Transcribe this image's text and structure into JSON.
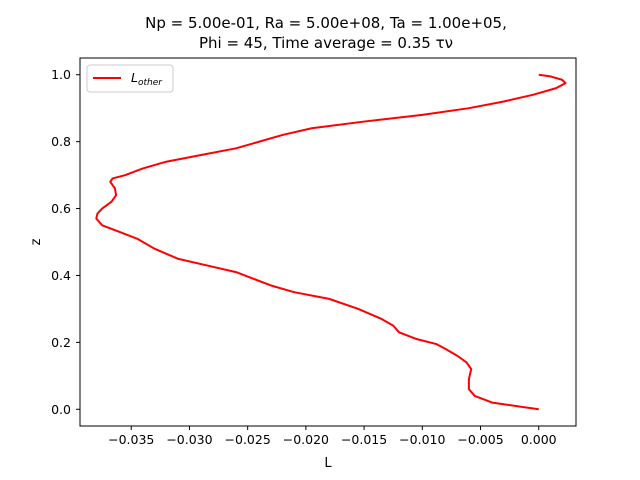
{
  "chart_data": {
    "type": "line",
    "title_line1": "Np = 5.00e-01, Ra = 5.00e+08, Ta = 1.00e+05,",
    "title_line2": "Phi = 45, Time average = 0.35 τν",
    "xlabel": "L",
    "ylabel": "z",
    "xlim": [
      -0.0394,
      0.0032
    ],
    "ylim": [
      -0.05,
      1.05
    ],
    "xticks": [
      -0.035,
      -0.03,
      -0.025,
      -0.02,
      -0.015,
      -0.01,
      -0.005,
      0.0
    ],
    "xtick_labels": [
      "−0.035",
      "−0.030",
      "−0.025",
      "−0.020",
      "−0.015",
      "−0.010",
      "−0.005",
      "0.000"
    ],
    "yticks": [
      0.0,
      0.2,
      0.4,
      0.6,
      0.8,
      1.0
    ],
    "ytick_labels": [
      "0.0",
      "0.2",
      "0.4",
      "0.6",
      "0.8",
      "1.0"
    ],
    "grid": false,
    "legend_position": "top-left",
    "series": [
      {
        "name": "L_other",
        "name_main": "L",
        "name_sub": "other",
        "color": "#ff0000",
        "points": [
          [
            0.0,
            0.0
          ],
          [
            -0.001,
            0.005
          ],
          [
            -0.004,
            0.02
          ],
          [
            -0.0055,
            0.04
          ],
          [
            -0.006,
            0.06
          ],
          [
            -0.006,
            0.09
          ],
          [
            -0.0058,
            0.12
          ],
          [
            -0.0062,
            0.14
          ],
          [
            -0.007,
            0.16
          ],
          [
            -0.008,
            0.18
          ],
          [
            -0.0088,
            0.195
          ],
          [
            -0.0105,
            0.21
          ],
          [
            -0.012,
            0.23
          ],
          [
            -0.0125,
            0.25
          ],
          [
            -0.0135,
            0.27
          ],
          [
            -0.0155,
            0.3
          ],
          [
            -0.018,
            0.33
          ],
          [
            -0.021,
            0.35
          ],
          [
            -0.023,
            0.37
          ],
          [
            -0.0245,
            0.39
          ],
          [
            -0.026,
            0.41
          ],
          [
            -0.0285,
            0.43
          ],
          [
            -0.031,
            0.45
          ],
          [
            -0.033,
            0.48
          ],
          [
            -0.0345,
            0.51
          ],
          [
            -0.036,
            0.53
          ],
          [
            -0.0375,
            0.55
          ],
          [
            -0.038,
            0.57
          ],
          [
            -0.0379,
            0.585
          ],
          [
            -0.0375,
            0.6
          ],
          [
            -0.0367,
            0.62
          ],
          [
            -0.0363,
            0.64
          ],
          [
            -0.0364,
            0.66
          ],
          [
            -0.0368,
            0.68
          ],
          [
            -0.0366,
            0.69
          ],
          [
            -0.0355,
            0.7
          ],
          [
            -0.034,
            0.72
          ],
          [
            -0.032,
            0.74
          ],
          [
            -0.029,
            0.76
          ],
          [
            -0.026,
            0.78
          ],
          [
            -0.024,
            0.8
          ],
          [
            -0.022,
            0.82
          ],
          [
            -0.0195,
            0.84
          ],
          [
            -0.015,
            0.86
          ],
          [
            -0.01,
            0.88
          ],
          [
            -0.006,
            0.9
          ],
          [
            -0.003,
            0.92
          ],
          [
            -0.0005,
            0.94
          ],
          [
            0.0015,
            0.96
          ],
          [
            0.0023,
            0.975
          ],
          [
            0.002,
            0.985
          ],
          [
            0.001,
            0.995
          ],
          [
            0.0,
            1.0
          ]
        ]
      }
    ]
  }
}
